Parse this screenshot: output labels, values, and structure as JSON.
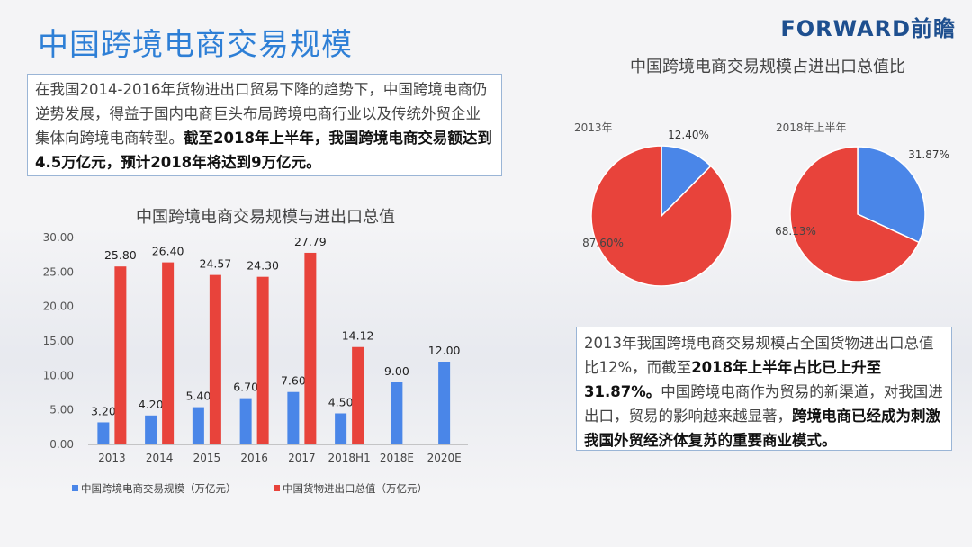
{
  "title": "中国跨境电商交易规模",
  "logo": "FORWARD前瞻",
  "intro_text": {
    "normal": "在我国2014-2016年货物进出口贸易下降的趋势下，中国跨境电商仍逆势发展，得益于国内电商巨头布局跨境电商行业以及传统外贸企业集体向跨境电商转型。",
    "bold": "截至2018年上半年，我国跨境电商交易额达到4.5万亿元，预计2018年将达到9万亿元。"
  },
  "note_text": {
    "p1": "2013年我国跨境电商交易规模占全国货物进出口总值比12%，而截至",
    "b1": "2018年上半年占比已上升至31.87%。",
    "p2": "中国跨境电商作为贸易的新渠道，对我国进出口，贸易的影响越来越显著，",
    "b2": "跨境电商已经成为刺激我国外贸经济体复苏的重要商业模式。"
  },
  "colors": {
    "blue": "#4a86e8",
    "red": "#e8433b",
    "accent": "#2e7fd6"
  },
  "chart_data": [
    {
      "type": "bar",
      "title": "中国跨境电商交易规模与进出口总值",
      "categories": [
        "2013",
        "2014",
        "2015",
        "2016",
        "2017",
        "2018H1",
        "2018E",
        "2020E"
      ],
      "ylim": [
        0,
        30
      ],
      "yticks": [
        "0.00",
        "5.00",
        "10.00",
        "15.00",
        "20.00",
        "25.00",
        "30.00"
      ],
      "legend_position": "bottom",
      "series": [
        {
          "name": "中国跨境电商交易规模（万亿元）",
          "color": "#4a86e8",
          "values": [
            3.2,
            4.2,
            5.4,
            6.7,
            7.6,
            4.5,
            9.0,
            12.0
          ],
          "labels": [
            "3.20",
            "4.20",
            "5.40",
            "6.70",
            "7.60",
            "4.50",
            "9.00",
            "12.00"
          ]
        },
        {
          "name": "中国货物进出口总值（万亿元）",
          "color": "#e8433b",
          "values": [
            25.8,
            26.4,
            24.57,
            24.3,
            27.79,
            14.12,
            null,
            null
          ],
          "labels": [
            "25.80",
            "26.40",
            "24.57",
            "24.30",
            "27.79",
            "14.12",
            "",
            ""
          ]
        }
      ]
    },
    {
      "type": "pie",
      "title": "中国跨境电商交易规模占进出口总值比",
      "subtitle": "2013年",
      "slices": [
        {
          "value": 12.4,
          "label": "12.40%",
          "color": "#4a86e8"
        },
        {
          "value": 87.6,
          "label": "87.60%",
          "color": "#e8433b"
        }
      ]
    },
    {
      "type": "pie",
      "subtitle": "2018年上半年",
      "slices": [
        {
          "value": 31.87,
          "label": "31.87%",
          "color": "#4a86e8"
        },
        {
          "value": 68.13,
          "label": "68.13%",
          "color": "#e8433b"
        }
      ]
    }
  ]
}
